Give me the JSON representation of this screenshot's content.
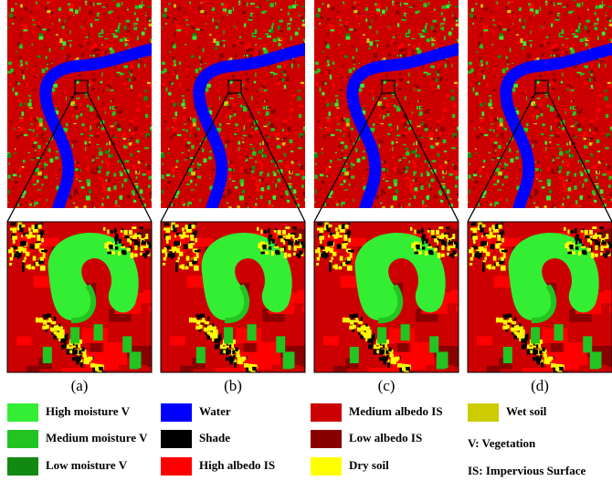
{
  "panels": [
    {
      "label": "(a)"
    },
    {
      "label": "(b)"
    },
    {
      "label": "(c)"
    },
    {
      "label": "(d)"
    }
  ],
  "legend": [
    {
      "label": "High moisture V",
      "color": "#33ee33"
    },
    {
      "label": "Medium moisture V",
      "color": "#22c422"
    },
    {
      "label": "Low moisture V",
      "color": "#128a12"
    },
    {
      "label": "Water",
      "color": "#0000ff"
    },
    {
      "label": "Shade",
      "color": "#000000"
    },
    {
      "label": "High albedo IS",
      "color": "#ff0000"
    },
    {
      "label": "Medium albedo IS",
      "color": "#cc0000"
    },
    {
      "label": "Low albedo IS",
      "color": "#880000"
    },
    {
      "label": "Dry soil",
      "color": "#ffff00"
    },
    {
      "label": "Wet soil",
      "color": "#cccc00"
    }
  ],
  "notes": [
    "V: Vegetation",
    "IS: Impervious Surface"
  ]
}
